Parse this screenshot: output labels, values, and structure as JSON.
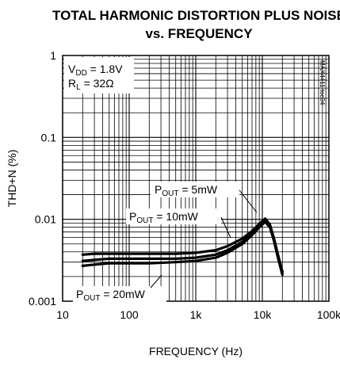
{
  "chart_data": {
    "type": "line",
    "title": "TOTAL HARMONIC DISTORTION PLUS NOISE",
    "subtitle": "vs. FREQUENCY",
    "xlabel": "FREQUENCY (Hz)",
    "ylabel": "THD+N (%)",
    "x_scale": "log",
    "y_scale": "log",
    "xlim": [
      10,
      100000
    ],
    "ylim": [
      0.001,
      1
    ],
    "grid": true,
    "x_tick_labels": [
      "10",
      "100",
      "1k",
      "10k",
      "100k"
    ],
    "y_tick_labels": [
      "1",
      "0.1",
      "0.01",
      "0.001"
    ],
    "conditions": {
      "vdd": {
        "prefix": "V",
        "sub": "DD",
        "value": " = 1.8V"
      },
      "rl": {
        "prefix": "R",
        "sub": "L",
        "value": " = 32Ω"
      }
    },
    "chart_code": "MAX4411 toc04",
    "series": [
      {
        "name": "POUT = 5mW",
        "label": {
          "prefix": "P",
          "sub": "OUT",
          "value": " = 5mW"
        },
        "x": [
          20,
          30,
          50,
          100,
          200,
          500,
          1000,
          2000,
          3000,
          5000,
          7000,
          9000,
          11000,
          13000,
          15000,
          17000,
          20000
        ],
        "y": [
          0.0037,
          0.0038,
          0.0038,
          0.0038,
          0.0038,
          0.0038,
          0.0039,
          0.0042,
          0.0047,
          0.0058,
          0.0072,
          0.0088,
          0.0102,
          0.0086,
          0.0058,
          0.0038,
          0.0023
        ]
      },
      {
        "name": "POUT = 10mW",
        "label": {
          "prefix": "P",
          "sub": "OUT",
          "value": " = 10mW"
        },
        "x": [
          20,
          30,
          50,
          100,
          200,
          500,
          1000,
          2000,
          3000,
          5000,
          7000,
          9000,
          11000,
          13000,
          15000,
          17000,
          20000
        ],
        "y": [
          0.0031,
          0.0032,
          0.0033,
          0.0033,
          0.0033,
          0.0033,
          0.0034,
          0.0037,
          0.0042,
          0.0053,
          0.0067,
          0.0084,
          0.0098,
          0.0083,
          0.0056,
          0.0036,
          0.0022
        ]
      },
      {
        "name": "POUT = 20mW",
        "label": {
          "prefix": "P",
          "sub": "OUT",
          "value": " = 20mW"
        },
        "x": [
          20,
          30,
          50,
          100,
          200,
          500,
          1000,
          2000,
          3000,
          5000,
          7000,
          9000,
          11000,
          13000,
          15000,
          17000,
          20000
        ],
        "y": [
          0.0027,
          0.0028,
          0.0029,
          0.0029,
          0.0029,
          0.003,
          0.0031,
          0.0034,
          0.0039,
          0.005,
          0.0064,
          0.008,
          0.0093,
          0.008,
          0.0054,
          0.0035,
          0.0021
        ]
      }
    ]
  }
}
